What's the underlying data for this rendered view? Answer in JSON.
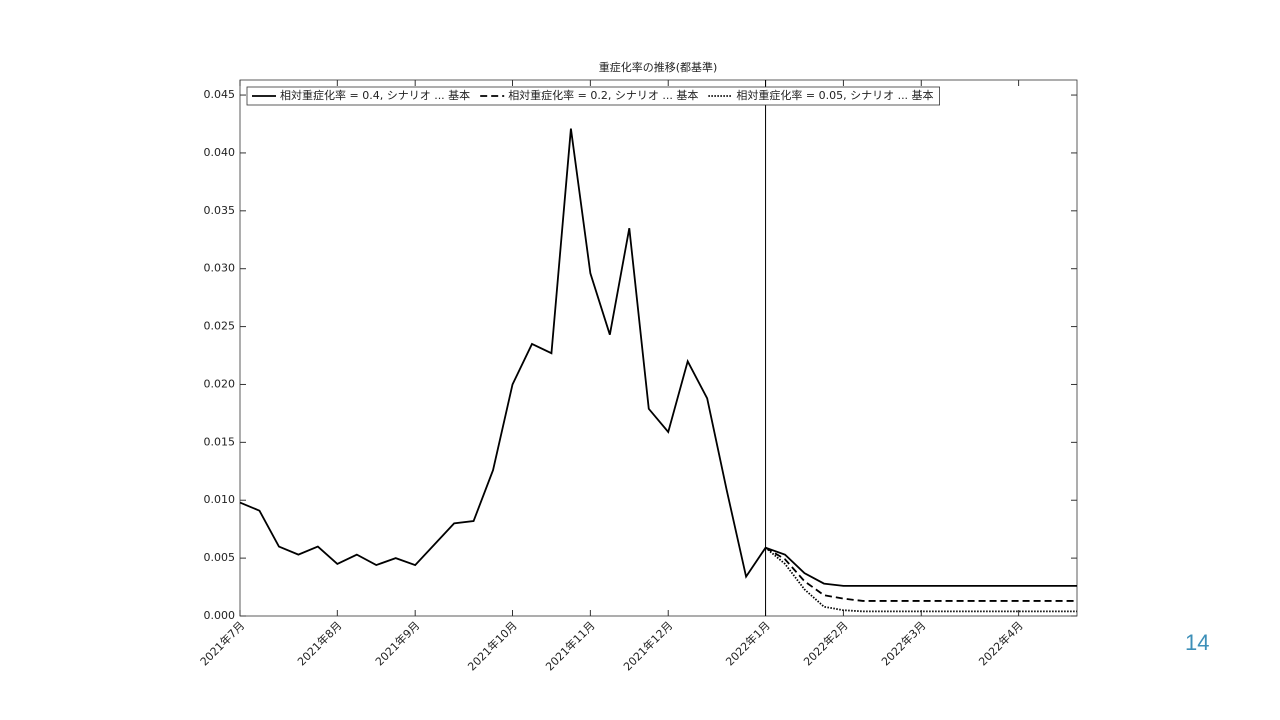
{
  "chart_data": {
    "type": "line",
    "title": "重症化率の推移(都基準)",
    "categories": [
      "2021年7月",
      null,
      null,
      null,
      null,
      "2021年8月",
      null,
      null,
      null,
      "2021年9月",
      null,
      null,
      null,
      null,
      "2021年10月",
      null,
      null,
      null,
      "2021年11月",
      null,
      null,
      null,
      "2021年12月",
      null,
      null,
      null,
      null,
      "2022年1月",
      null,
      null,
      null,
      "2022年2月",
      null,
      null,
      null,
      "2022年3月",
      null,
      null,
      null,
      null,
      "2022年4月",
      null,
      null,
      null
    ],
    "series": [
      {
        "name": "相対重症化率 = 0.4, シナリオ ... 基本",
        "color": "#000000",
        "dash": "solid",
        "values": [
          0.0098,
          0.0091,
          0.006,
          0.0053,
          0.006,
          0.0045,
          0.0053,
          0.0044,
          0.005,
          0.0044,
          0.0062,
          0.008,
          0.0082,
          0.0126,
          0.02,
          0.0235,
          0.0227,
          0.0421,
          0.0296,
          0.0243,
          0.0335,
          0.0179,
          0.0159,
          0.022,
          0.0188,
          0.0109,
          0.0034,
          0.0059,
          0.0053,
          0.0037,
          0.0028,
          0.0026,
          0.0026,
          0.0026,
          0.0026,
          0.0026,
          0.0026,
          0.0026,
          0.0026,
          0.0026,
          0.0026,
          0.0026,
          0.0026,
          0.0026
        ]
      },
      {
        "name": "相対重症化率 = 0.2, シナリオ ... 基本",
        "color": "#000000",
        "dash": "dashed",
        "values": [
          null,
          null,
          null,
          null,
          null,
          null,
          null,
          null,
          null,
          null,
          null,
          null,
          null,
          null,
          null,
          null,
          null,
          null,
          null,
          null,
          null,
          null,
          null,
          null,
          null,
          null,
          null,
          0.0059,
          0.0049,
          0.003,
          0.0018,
          0.0015,
          0.0013,
          0.0013,
          0.0013,
          0.0013,
          0.0013,
          0.0013,
          0.0013,
          0.0013,
          0.0013,
          0.0013,
          0.0013,
          0.0013
        ]
      },
      {
        "name": "相対重症化率 = 0.05, シナリオ ... 基本",
        "color": "#000000",
        "dash": "dotted",
        "values": [
          null,
          null,
          null,
          null,
          null,
          null,
          null,
          null,
          null,
          null,
          null,
          null,
          null,
          null,
          null,
          null,
          null,
          null,
          null,
          null,
          null,
          null,
          null,
          null,
          null,
          null,
          null,
          0.0059,
          0.0045,
          0.0023,
          0.0008,
          0.0005,
          0.0004,
          0.0004,
          0.0004,
          0.0004,
          0.0004,
          0.0004,
          0.0004,
          0.0004,
          0.0004,
          0.0004,
          0.0004,
          0.0004
        ]
      }
    ],
    "vline_index": 27,
    "ylim": [
      0,
      0.0463
    ],
    "yticks": [
      {
        "value": 0,
        "label": "0.000"
      },
      0.005,
      {
        "value": 0.01,
        "label": "0.010"
      },
      0.015,
      {
        "value": 0.02,
        "label": "0.020"
      },
      0.025,
      {
        "value": 0.03,
        "label": "0.030"
      },
      0.035,
      {
        "value": 0.04,
        "label": "0.040"
      },
      0.045
    ],
    "legend": "top-left",
    "grid": false
  },
  "slide_number": "14"
}
